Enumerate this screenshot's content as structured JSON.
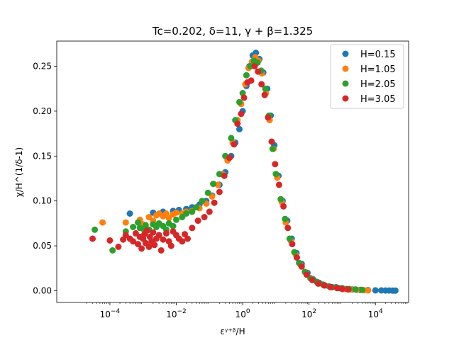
{
  "chart_data": {
    "type": "scatter",
    "title": "Tc=0.202, δ=11, γ + β=1.325",
    "xlabel": "εᵞ⁺ᵝ/H",
    "ylabel": "χ/H^(1/δ-1)",
    "xscale": "log",
    "xlim": [
      2.5e-06,
      100000
    ],
    "ylim": [
      -0.013,
      0.278
    ],
    "x_tick_values": [
      0.0001,
      0.01,
      1,
      100,
      10000
    ],
    "x_tick_labels": [
      {
        "base": "10",
        "exp": "−4"
      },
      {
        "base": "10",
        "exp": "−2"
      },
      {
        "base": "10",
        "exp": "0"
      },
      {
        "base": "10",
        "exp": "2"
      },
      {
        "base": "10",
        "exp": "4"
      }
    ],
    "y_ticks": [
      0.0,
      0.05,
      0.1,
      0.15,
      0.2,
      0.25
    ],
    "y_tick_labels": [
      "0.00",
      "0.05",
      "0.10",
      "0.15",
      "0.20",
      "0.25"
    ],
    "legend_position": "top-right",
    "series": [
      {
        "name": "H=0.15",
        "color": "#1f77b4",
        "points": [
          [
            0.0004,
            0.086
          ],
          [
            0.002,
            0.087
          ],
          [
            0.004,
            0.088
          ],
          [
            0.008,
            0.089
          ],
          [
            0.012,
            0.09
          ],
          [
            0.02,
            0.091
          ],
          [
            0.03,
            0.093
          ],
          [
            0.05,
            0.096
          ],
          [
            0.08,
            0.1
          ],
          [
            0.12,
            0.106
          ],
          [
            0.2,
            0.118
          ],
          [
            0.3,
            0.132
          ],
          [
            0.45,
            0.15
          ],
          [
            0.6,
            0.165
          ],
          [
            0.8,
            0.18
          ],
          [
            1.0,
            0.2
          ],
          [
            1.3,
            0.228
          ],
          [
            1.6,
            0.25
          ],
          [
            2.0,
            0.262
          ],
          [
            2.5,
            0.265
          ],
          [
            3.2,
            0.258
          ],
          [
            4.2,
            0.243
          ],
          [
            5.5,
            0.225
          ],
          [
            7,
            0.195
          ],
          [
            9,
            0.162
          ],
          [
            12,
            0.128
          ],
          [
            16,
            0.1
          ],
          [
            22,
            0.078
          ],
          [
            30,
            0.058
          ],
          [
            42,
            0.042
          ],
          [
            60,
            0.03
          ],
          [
            90,
            0.02
          ],
          [
            130,
            0.013
          ],
          [
            200,
            0.009
          ],
          [
            300,
            0.006
          ],
          [
            500,
            0.004
          ],
          [
            800,
            0.003
          ],
          [
            1300,
            0.002
          ],
          [
            2000,
            0.0015
          ],
          [
            3500,
            0.001
          ],
          [
            6000,
            0.0008
          ],
          [
            10000,
            0.0005
          ],
          [
            15000,
            0.0004
          ],
          [
            20000,
            0.0003
          ],
          [
            26000,
            0.0003
          ],
          [
            33000,
            0.0002
          ],
          [
            40000,
            0.0002
          ]
        ]
      },
      {
        "name": "H=1.05",
        "color": "#ff7f0e",
        "points": [
          [
            6e-05,
            0.076
          ],
          [
            0.0003,
            0.076
          ],
          [
            0.0008,
            0.079
          ],
          [
            0.001,
            0.074
          ],
          [
            0.0015,
            0.082
          ],
          [
            0.002,
            0.078
          ],
          [
            0.0025,
            0.084
          ],
          [
            0.003,
            0.086
          ],
          [
            0.004,
            0.083
          ],
          [
            0.005,
            0.086
          ],
          [
            0.006,
            0.081
          ],
          [
            0.008,
            0.085
          ],
          [
            0.01,
            0.087
          ],
          [
            0.015,
            0.086
          ],
          [
            0.02,
            0.088
          ],
          [
            0.03,
            0.089
          ],
          [
            0.05,
            0.092
          ],
          [
            0.08,
            0.097
          ],
          [
            0.12,
            0.105
          ],
          [
            0.18,
            0.118
          ],
          [
            0.25,
            0.13
          ],
          [
            0.35,
            0.145
          ],
          [
            0.5,
            0.165
          ],
          [
            0.7,
            0.19
          ],
          [
            0.9,
            0.208
          ],
          [
            1.2,
            0.23
          ],
          [
            1.5,
            0.248
          ],
          [
            1.9,
            0.255
          ],
          [
            2.4,
            0.26
          ],
          [
            3.0,
            0.256
          ],
          [
            3.8,
            0.242
          ],
          [
            5.0,
            0.22
          ],
          [
            6.5,
            0.19
          ],
          [
            8.5,
            0.158
          ],
          [
            11,
            0.126
          ],
          [
            15,
            0.099
          ],
          [
            20,
            0.076
          ],
          [
            28,
            0.056
          ],
          [
            40,
            0.04
          ],
          [
            55,
            0.029
          ],
          [
            80,
            0.02
          ],
          [
            120,
            0.013
          ],
          [
            180,
            0.009
          ],
          [
            280,
            0.006
          ],
          [
            450,
            0.004
          ],
          [
            700,
            0.003
          ],
          [
            1100,
            0.002
          ],
          [
            1800,
            0.0015
          ],
          [
            2800,
            0.001
          ],
          [
            4500,
            0.0006
          ],
          [
            6000,
            0.0004
          ]
        ]
      },
      {
        "name": "H=2.05",
        "color": "#2ca02c",
        "points": [
          [
            3.5e-05,
            0.068
          ],
          [
            0.00012,
            0.045
          ],
          [
            0.0003,
            0.066
          ],
          [
            0.0005,
            0.071
          ],
          [
            0.0007,
            0.076
          ],
          [
            0.0008,
            0.07
          ],
          [
            0.001,
            0.069
          ],
          [
            0.0012,
            0.073
          ],
          [
            0.0015,
            0.068
          ],
          [
            0.002,
            0.074
          ],
          [
            0.0025,
            0.071
          ],
          [
            0.003,
            0.075
          ],
          [
            0.004,
            0.072
          ],
          [
            0.005,
            0.068
          ],
          [
            0.006,
            0.075
          ],
          [
            0.008,
            0.072
          ],
          [
            0.01,
            0.079
          ],
          [
            0.015,
            0.082
          ],
          [
            0.02,
            0.086
          ],
          [
            0.03,
            0.088
          ],
          [
            0.04,
            0.093
          ],
          [
            0.06,
            0.1
          ],
          [
            0.09,
            0.109
          ],
          [
            0.13,
            0.119
          ],
          [
            0.2,
            0.13
          ],
          [
            0.3,
            0.15
          ],
          [
            0.45,
            0.17
          ],
          [
            0.6,
            0.19
          ],
          [
            0.8,
            0.21
          ],
          [
            1.0,
            0.22
          ],
          [
            1.3,
            0.24
          ],
          [
            1.7,
            0.25
          ],
          [
            2.2,
            0.256
          ],
          [
            2.8,
            0.254
          ],
          [
            3.6,
            0.245
          ],
          [
            4.8,
            0.225
          ],
          [
            6.2,
            0.195
          ],
          [
            8,
            0.158
          ],
          [
            10,
            0.13
          ],
          [
            14,
            0.102
          ],
          [
            19,
            0.08
          ],
          [
            26,
            0.058
          ],
          [
            36,
            0.043
          ],
          [
            50,
            0.031
          ],
          [
            75,
            0.021
          ],
          [
            110,
            0.014
          ],
          [
            170,
            0.01
          ],
          [
            260,
            0.007
          ],
          [
            400,
            0.005
          ],
          [
            650,
            0.004
          ],
          [
            1000,
            0.003
          ],
          [
            1600,
            0.002
          ],
          [
            2500,
            0.0015
          ],
          [
            4000,
            0.001
          ]
        ]
      },
      {
        "name": "H=3.05",
        "color": "#d62728",
        "points": [
          [
            3e-05,
            0.058
          ],
          [
            0.0001,
            0.056
          ],
          [
            0.00018,
            0.049
          ],
          [
            0.00025,
            0.057
          ],
          [
            0.0003,
            0.062
          ],
          [
            0.0004,
            0.058
          ],
          [
            0.0005,
            0.055
          ],
          [
            0.0006,
            0.064
          ],
          [
            0.0007,
            0.052
          ],
          [
            0.0008,
            0.06
          ],
          [
            0.0009,
            0.047
          ],
          [
            0.001,
            0.058
          ],
          [
            0.0011,
            0.063
          ],
          [
            0.0012,
            0.053
          ],
          [
            0.0013,
            0.067
          ],
          [
            0.0015,
            0.049
          ],
          [
            0.0016,
            0.06
          ],
          [
            0.0018,
            0.055
          ],
          [
            0.002,
            0.065
          ],
          [
            0.0022,
            0.051
          ],
          [
            0.0025,
            0.058
          ],
          [
            0.003,
            0.062
          ],
          [
            0.0035,
            0.045
          ],
          [
            0.004,
            0.057
          ],
          [
            0.005,
            0.064
          ],
          [
            0.006,
            0.055
          ],
          [
            0.007,
            0.05
          ],
          [
            0.008,
            0.066
          ],
          [
            0.01,
            0.062
          ],
          [
            0.012,
            0.058
          ],
          [
            0.015,
            0.055
          ],
          [
            0.018,
            0.063
          ],
          [
            0.022,
            0.058
          ],
          [
            0.03,
            0.07
          ],
          [
            0.045,
            0.078
          ],
          [
            0.07,
            0.082
          ],
          [
            0.1,
            0.088
          ],
          [
            0.14,
            0.098
          ],
          [
            0.2,
            0.11
          ],
          [
            0.28,
            0.128
          ],
          [
            0.4,
            0.148
          ],
          [
            0.55,
            0.163
          ],
          [
            0.7,
            0.186
          ],
          [
            0.9,
            0.197
          ],
          [
            1.1,
            0.215
          ],
          [
            1.4,
            0.232
          ],
          [
            1.8,
            0.234
          ],
          [
            2.3,
            0.25
          ],
          [
            2.9,
            0.244
          ],
          [
            3.7,
            0.23
          ],
          [
            4.6,
            0.218
          ],
          [
            5.8,
            0.193
          ],
          [
            7.5,
            0.166
          ],
          [
            9.5,
            0.141
          ],
          [
            12.5,
            0.118
          ],
          [
            17,
            0.094
          ],
          [
            23,
            0.07
          ],
          [
            31,
            0.052
          ],
          [
            43,
            0.037
          ],
          [
            60,
            0.027
          ],
          [
            85,
            0.018
          ],
          [
            125,
            0.012
          ],
          [
            190,
            0.008
          ],
          [
            290,
            0.006
          ],
          [
            450,
            0.004
          ],
          [
            700,
            0.003
          ],
          [
            1000,
            0.002
          ],
          [
            1500,
            0.0015
          ]
        ]
      }
    ]
  }
}
